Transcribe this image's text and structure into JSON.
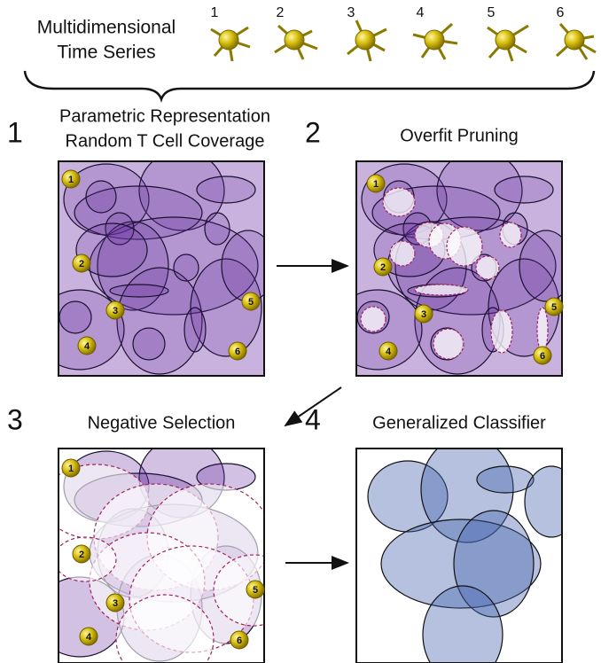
{
  "header": {
    "title_lines": [
      "Multidimensional",
      "Time Series"
    ],
    "series_labels": [
      "1",
      "2",
      "3",
      "4",
      "5",
      "6"
    ]
  },
  "steps": [
    {
      "number": "1",
      "title_lines": [
        "Parametric Representation",
        "Random T Cell Coverage"
      ],
      "points": [
        "1",
        "2",
        "3",
        "4",
        "5",
        "6"
      ]
    },
    {
      "number": "2",
      "title_lines": [
        "Overfit Pruning"
      ],
      "points": [
        "1",
        "2",
        "3",
        "4",
        "5",
        "6"
      ]
    },
    {
      "number": "3",
      "title_lines": [
        "Negative Selection"
      ],
      "points": [
        "1",
        "2",
        "3",
        "4",
        "5",
        "6"
      ]
    },
    {
      "number": "4",
      "title_lines": [
        "Generalized Classifier"
      ]
    }
  ]
}
